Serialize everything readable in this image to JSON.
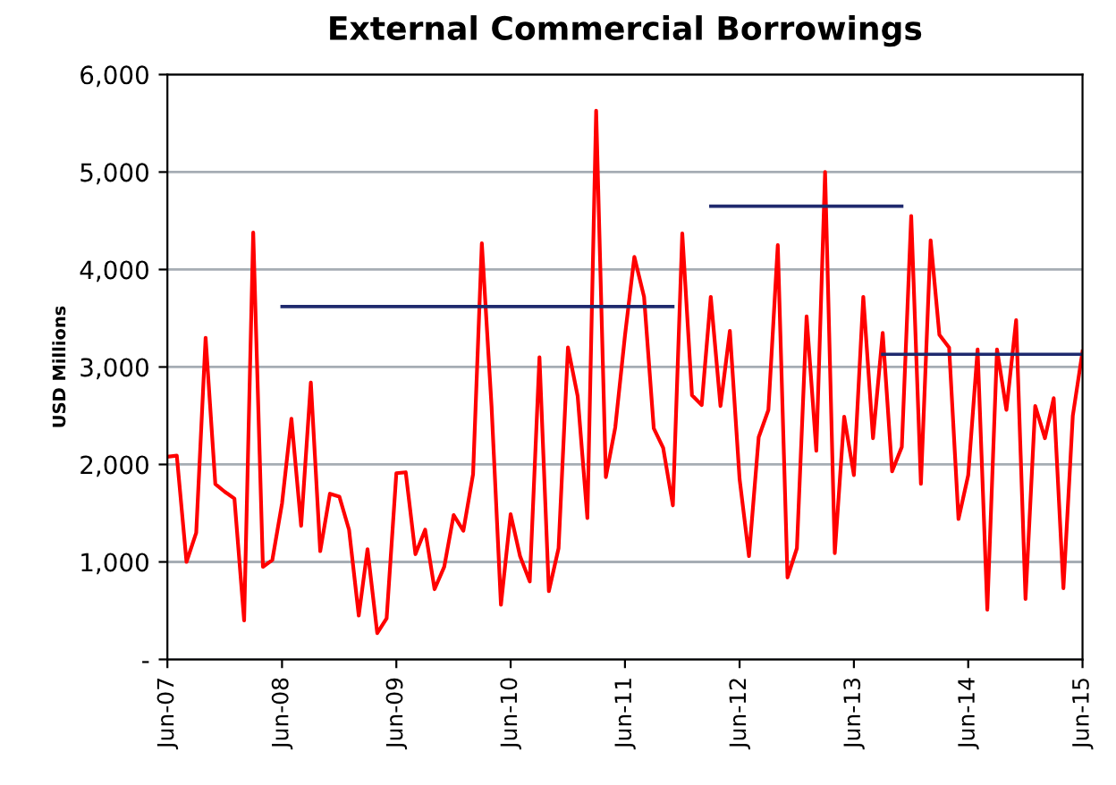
{
  "chart_data": {
    "type": "line",
    "title": "External Commercial Borrowings",
    "ylabel": "USD Millions",
    "x": [
      "2007-06",
      "2007-07",
      "2007-08",
      "2007-09",
      "2007-10",
      "2007-11",
      "2007-12",
      "2008-01",
      "2008-02",
      "2008-03",
      "2008-04",
      "2008-05",
      "2008-06",
      "2008-07",
      "2008-08",
      "2008-09",
      "2008-10",
      "2008-11",
      "2008-12",
      "2009-01",
      "2009-02",
      "2009-03",
      "2009-04",
      "2009-05",
      "2009-06",
      "2009-07",
      "2009-08",
      "2009-09",
      "2009-10",
      "2009-11",
      "2009-12",
      "2010-01",
      "2010-02",
      "2010-03",
      "2010-04",
      "2010-05",
      "2010-06",
      "2010-07",
      "2010-08",
      "2010-09",
      "2010-10",
      "2010-11",
      "2010-12",
      "2011-01",
      "2011-02",
      "2011-03",
      "2011-04",
      "2011-05",
      "2011-06",
      "2011-07",
      "2011-08",
      "2011-09",
      "2011-10",
      "2011-11",
      "2011-12",
      "2012-01",
      "2012-02",
      "2012-03",
      "2012-04",
      "2012-05",
      "2012-06",
      "2012-07",
      "2012-08",
      "2012-09",
      "2012-10",
      "2012-11",
      "2012-12",
      "2013-01",
      "2013-02",
      "2013-03",
      "2013-04",
      "2013-05",
      "2013-06",
      "2013-07",
      "2013-08",
      "2013-09",
      "2013-10",
      "2013-11",
      "2013-12",
      "2014-01",
      "2014-02",
      "2014-03",
      "2014-04",
      "2014-05",
      "2014-06",
      "2014-07",
      "2014-08",
      "2014-09",
      "2014-10",
      "2014-11",
      "2014-12",
      "2015-01",
      "2015-02",
      "2015-03",
      "2015-04",
      "2015-05",
      "2015-06"
    ],
    "series": [
      {
        "color": "#ff0000",
        "values": [
          2080,
          2090,
          1000,
          1300,
          3300,
          1800,
          1720,
          1650,
          400,
          4380,
          950,
          1020,
          1600,
          2470,
          1370,
          2840,
          1110,
          1700,
          1670,
          1330,
          450,
          1130,
          270,
          420,
          1910,
          1920,
          1080,
          1330,
          720,
          950,
          1480,
          1320,
          1900,
          4270,
          2600,
          560,
          1490,
          1060,
          800,
          3100,
          700,
          1140,
          3200,
          2700,
          1450,
          5630,
          1870,
          2380,
          3320,
          4130,
          3720,
          2370,
          2170,
          1580,
          4370,
          2710,
          2610,
          3720,
          2600,
          3370,
          1850,
          1060,
          2280,
          2560,
          4250,
          840,
          1140,
          3520,
          2140,
          5000,
          1090,
          2490,
          1890,
          3720,
          2270,
          3350,
          1930,
          2180,
          4550,
          1800,
          4300,
          3330,
          3200,
          1440,
          1890,
          3180,
          510,
          3180,
          2560,
          3480,
          620,
          2600,
          2270,
          2680,
          730,
          2500,
          3160
        ]
      },
      {
        "color": "#1f2a6e",
        "x": [
          "2008-06",
          "2011-11"
        ],
        "values": [
          3620,
          3620
        ]
      },
      {
        "color": "#1f2a6e",
        "x": [
          "2012-03",
          "2013-11"
        ],
        "values": [
          4650,
          4650
        ]
      },
      {
        "color": "#1f2a6e",
        "x": [
          "2013-09",
          "2015-06"
        ],
        "values": [
          3130,
          3130
        ]
      }
    ],
    "xlim": [
      "2007-06",
      "2015-06"
    ],
    "xticks": [
      {
        "value": "2007-06",
        "label": "Jun-07"
      },
      {
        "value": "2008-06",
        "label": "Jun-08"
      },
      {
        "value": "2009-06",
        "label": "Jun-09"
      },
      {
        "value": "2010-06",
        "label": "Jun-10"
      },
      {
        "value": "2011-06",
        "label": "Jun-11"
      },
      {
        "value": "2012-06",
        "label": "Jun-12"
      },
      {
        "value": "2013-06",
        "label": "Jun-13"
      },
      {
        "value": "2014-06",
        "label": "Jun-14"
      },
      {
        "value": "2015-06",
        "label": "Jun-15"
      }
    ],
    "ylim": [
      0,
      6000
    ],
    "yticks": [
      {
        "value": 0,
        "label": "-"
      },
      {
        "value": 1000,
        "label": "1,000"
      },
      {
        "value": 2000,
        "label": "2,000"
      },
      {
        "value": 3000,
        "label": "3,000"
      },
      {
        "value": 4000,
        "label": "4,000"
      },
      {
        "value": 5000,
        "label": "5,000"
      },
      {
        "value": 6000,
        "label": "6,000"
      }
    ],
    "grid": "y",
    "marker": "none",
    "line_style": "solid"
  }
}
